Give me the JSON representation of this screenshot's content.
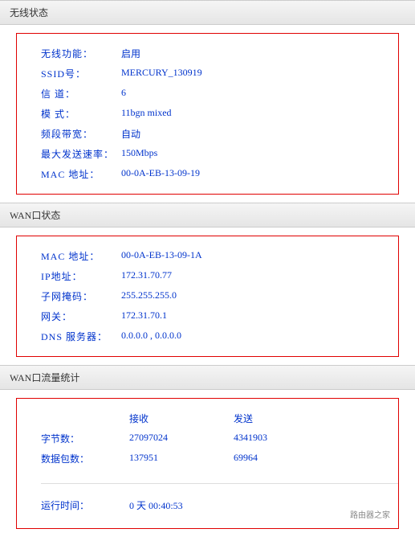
{
  "wireless": {
    "title": "无线状态",
    "rows": {
      "function_label": "无线功能：",
      "function_value": "启用",
      "ssid_label": "SSID号：",
      "ssid_value": "MERCURY_130919",
      "channel_label": "信 道：",
      "channel_value": "6",
      "mode_label": "模 式：",
      "mode_value": "11bgn mixed",
      "bandwidth_label": "频段带宽：",
      "bandwidth_value": "自动",
      "maxrate_label": "最大发送速率：",
      "maxrate_value": "150Mbps",
      "mac_label": "MAC 地址：",
      "mac_value": "00-0A-EB-13-09-19"
    }
  },
  "wan": {
    "title": "WAN口状态",
    "rows": {
      "mac_label": "MAC 地址：",
      "mac_value": "00-0A-EB-13-09-1A",
      "ip_label": "IP地址：",
      "ip_value": "172.31.70.77",
      "mask_label": "子网掩码：",
      "mask_value": "255.255.255.0",
      "gateway_label": "网关：",
      "gateway_value": "172.31.70.1",
      "dns_label": "DNS 服务器：",
      "dns_value": "0.0.0.0 , 0.0.0.0"
    }
  },
  "stats": {
    "title": "WAN口流量统计",
    "rx_header": "接收",
    "tx_header": "发送",
    "bytes_label": "字节数：",
    "bytes_rx": "27097024",
    "bytes_tx": "4341903",
    "packets_label": "数据包数：",
    "packets_rx": "137951",
    "packets_tx": "69964",
    "uptime_label": "运行时间：",
    "uptime_value": "0 天 00:40:53"
  },
  "watermark": "路由器之家"
}
